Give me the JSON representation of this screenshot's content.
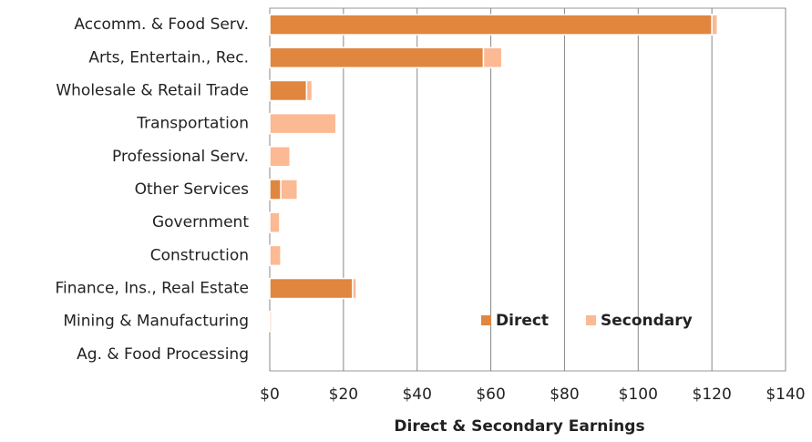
{
  "chart_data": {
    "type": "stacked_bar_horizontal",
    "xlabel": "Direct & Secondary Earnings",
    "categories": [
      "Accomm. & Food Serv.",
      "Arts, Entertain., Rec.",
      "Wholesale & Retail Trade",
      "Transportation",
      "Professional Serv.",
      "Other Services",
      "Government",
      "Construction",
      "Finance, Ins., Real Estate",
      "Mining & Manufacturing",
      "Ag. & Food Processing"
    ],
    "series": [
      {
        "name": "Direct",
        "color": "#e0863f",
        "values": [
          120,
          58,
          10,
          0,
          0,
          3,
          0,
          0,
          22.5,
          0,
          0
        ]
      },
      {
        "name": "Secondary",
        "color": "#fbb994",
        "values": [
          1.5,
          5,
          1.5,
          18,
          5.5,
          4.5,
          2.7,
          3,
          1,
          0.5,
          0
        ]
      }
    ],
    "xlim": [
      0,
      140
    ],
    "xticks": [
      {
        "value": 0,
        "label": "$0"
      },
      {
        "value": 20,
        "label": "$20"
      },
      {
        "value": 40,
        "label": "$40"
      },
      {
        "value": 60,
        "label": "$60"
      },
      {
        "value": 80,
        "label": "$80"
      },
      {
        "value": 100,
        "label": "$100"
      },
      {
        "value": 120,
        "label": "$120"
      },
      {
        "value": 140,
        "label": "$140"
      }
    ],
    "grid": true,
    "legend": "lower right"
  }
}
